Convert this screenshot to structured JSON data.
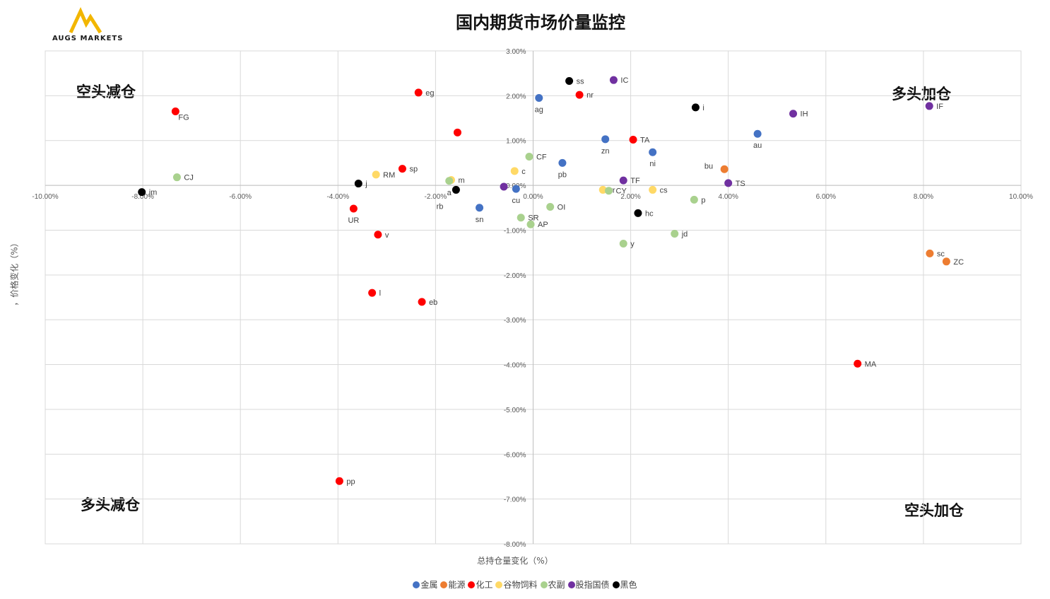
{
  "logo": {
    "text": "AUGS  MARKETS",
    "color": "#f2b600"
  },
  "chart_data": {
    "type": "scatter",
    "title": "国内期货市场价量监控",
    "xlabel": "总持仓量变化（%）",
    "ylabel": "，价格变化（%）",
    "xlim": [
      -10,
      10
    ],
    "ylim": [
      -8,
      3
    ],
    "x_ticks": [
      "-10.00%",
      "-8.00%",
      "-6.00%",
      "-4.00%",
      "-2.00%",
      "0.00%",
      "2.00%",
      "4.00%",
      "6.00%",
      "8.00%",
      "10.00%"
    ],
    "y_ticks": [
      "3.00%",
      "2.00%",
      "1.00%",
      "0.00%",
      "-1.00%",
      "-2.00%",
      "-3.00%",
      "-4.00%",
      "-5.00%",
      "-6.00%",
      "-7.00%",
      "-8.00%"
    ],
    "grid": true,
    "legend_position": "bottom",
    "quadrant_labels": {
      "top_left": "空头减仓",
      "top_right": "多头加仓",
      "bottom_left": "多头减仓",
      "bottom_right": "空头加仓"
    },
    "series": [
      {
        "name": "金属",
        "color": "#4472c4",
        "points": [
          {
            "label": "ag",
            "x": 0.12,
            "y": 1.95,
            "pos": "below"
          },
          {
            "label": "zn",
            "x": 1.48,
            "y": 1.03,
            "pos": "below"
          },
          {
            "label": "ni",
            "x": 2.45,
            "y": 0.74,
            "pos": "below"
          },
          {
            "label": "au",
            "x": 4.6,
            "y": 1.15,
            "pos": "below"
          },
          {
            "label": "pb",
            "x": 0.6,
            "y": 0.5,
            "pos": "below"
          },
          {
            "label": "cu",
            "x": -0.35,
            "y": -0.08,
            "pos": "below"
          },
          {
            "label": "sn",
            "x": -1.1,
            "y": -0.5,
            "pos": "below"
          }
        ]
      },
      {
        "name": "能源",
        "color": "#ed7d31",
        "points": [
          {
            "label": "bu",
            "x": 3.92,
            "y": 0.36,
            "pos": "left"
          },
          {
            "label": "sc",
            "x": 8.13,
            "y": -1.52,
            "pos": "right"
          },
          {
            "label": "ZC",
            "x": 8.47,
            "y": -1.7,
            "pos": "right"
          }
        ]
      },
      {
        "name": "化工",
        "color": "#ff0000",
        "points": [
          {
            "label": "eg",
            "x": -2.35,
            "y": 2.07,
            "pos": "right"
          },
          {
            "label": "nr",
            "x": 0.95,
            "y": 2.02,
            "pos": "right"
          },
          {
            "label": "FG",
            "x": -7.33,
            "y": 1.65,
            "pos": "below-right"
          },
          {
            "label": "",
            "x": -1.55,
            "y": 1.18,
            "pos": "none"
          },
          {
            "label": "TA",
            "x": 2.05,
            "y": 1.02,
            "pos": "right"
          },
          {
            "label": "sp",
            "x": -2.68,
            "y": 0.37,
            "pos": "right"
          },
          {
            "label": "UR",
            "x": -3.68,
            "y": -0.52,
            "pos": "below"
          },
          {
            "label": "v",
            "x": -3.18,
            "y": -1.1,
            "pos": "right"
          },
          {
            "label": "l",
            "x": -3.3,
            "y": -2.4,
            "pos": "right"
          },
          {
            "label": "eb",
            "x": -2.28,
            "y": -2.6,
            "pos": "right"
          },
          {
            "label": "MA",
            "x": 6.65,
            "y": -3.98,
            "pos": "right"
          },
          {
            "label": "pp",
            "x": -3.97,
            "y": -6.6,
            "pos": "right"
          }
        ]
      },
      {
        "name": "谷物饲料",
        "color": "#ffd966",
        "points": [
          {
            "label": "RM",
            "x": -3.22,
            "y": 0.24,
            "pos": "right"
          },
          {
            "label": "c",
            "x": -0.38,
            "y": 0.32,
            "pos": "right"
          },
          {
            "label": "m",
            "x": -1.68,
            "y": 0.12,
            "pos": "right"
          },
          {
            "label": "rr",
            "x": 1.43,
            "y": -0.1,
            "pos": "right"
          },
          {
            "label": "cs",
            "x": 2.45,
            "y": -0.1,
            "pos": "right"
          }
        ]
      },
      {
        "name": "农副",
        "color": "#a9d18e",
        "points": [
          {
            "label": "CJ",
            "x": -7.3,
            "y": 0.18,
            "pos": "right"
          },
          {
            "label": "CF",
            "x": -0.08,
            "y": 0.64,
            "pos": "right"
          },
          {
            "label": "a",
            "x": -1.72,
            "y": 0.1,
            "pos": "below"
          },
          {
            "label": "CY",
            "x": 1.55,
            "y": -0.12,
            "pos": "right"
          },
          {
            "label": "OI",
            "x": 0.35,
            "y": -0.48,
            "pos": "right"
          },
          {
            "label": "SR",
            "x": -0.25,
            "y": -0.72,
            "pos": "right"
          },
          {
            "label": "AP",
            "x": -0.05,
            "y": -0.87,
            "pos": "right"
          },
          {
            "label": "p",
            "x": 3.3,
            "y": -0.32,
            "pos": "right"
          },
          {
            "label": "jd",
            "x": 2.9,
            "y": -1.08,
            "pos": "right"
          },
          {
            "label": "y",
            "x": 1.85,
            "y": -1.3,
            "pos": "right"
          }
        ]
      },
      {
        "name": "股指国债",
        "color": "#7030a0",
        "points": [
          {
            "label": "IC",
            "x": 1.65,
            "y": 2.35,
            "pos": "right"
          },
          {
            "label": "IH",
            "x": 5.33,
            "y": 1.6,
            "pos": "right"
          },
          {
            "label": "IF",
            "x": 8.12,
            "y": 1.77,
            "pos": "right"
          },
          {
            "label": "TF",
            "x": 1.85,
            "y": 0.11,
            "pos": "right"
          },
          {
            "label": "TS",
            "x": 4.0,
            "y": 0.05,
            "pos": "right"
          },
          {
            "label": "",
            "x": -0.6,
            "y": -0.03,
            "pos": "none"
          }
        ]
      },
      {
        "name": "黑色",
        "color": "#000000",
        "points": [
          {
            "label": "ss",
            "x": 0.74,
            "y": 2.33,
            "pos": "right"
          },
          {
            "label": "i",
            "x": 3.33,
            "y": 1.74,
            "pos": "right"
          },
          {
            "label": "jm",
            "x": -8.02,
            "y": -0.15,
            "pos": "right"
          },
          {
            "label": "j",
            "x": -3.58,
            "y": 0.04,
            "pos": "right"
          },
          {
            "label": "rb",
            "x": -1.58,
            "y": -0.1,
            "pos": "below-left"
          },
          {
            "label": "hc",
            "x": 2.15,
            "y": -0.62,
            "pos": "right"
          }
        ]
      }
    ]
  }
}
